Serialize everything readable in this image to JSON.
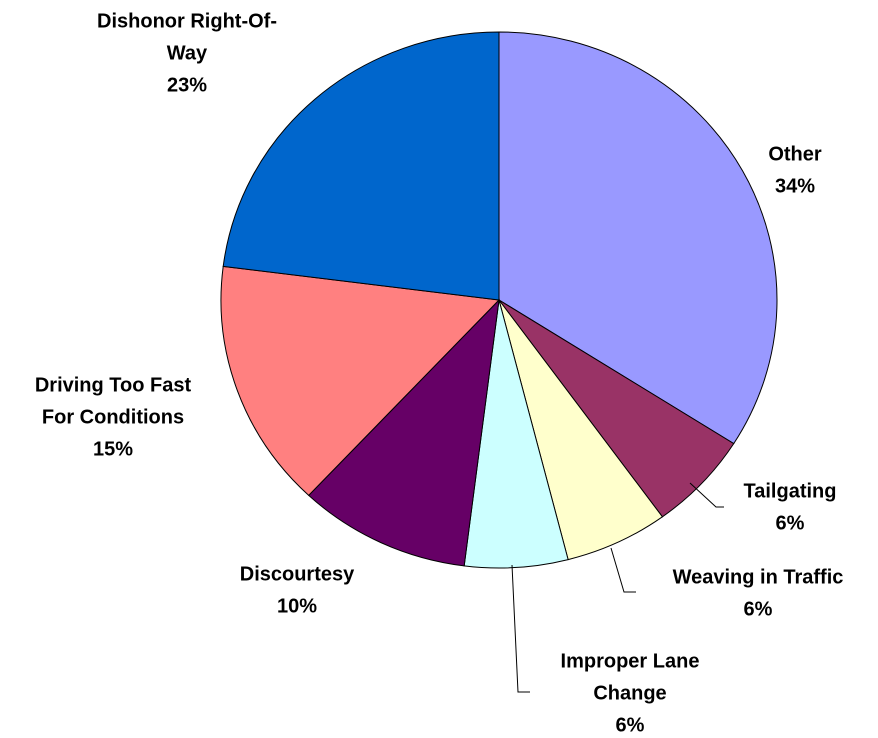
{
  "chart_data": {
    "type": "pie",
    "categories": [
      [
        "Other"
      ],
      [
        "Tailgating"
      ],
      [
        "Weaving in Traffic"
      ],
      [
        "Improper Lane",
        "Change"
      ],
      [
        "Discourtesy"
      ],
      [
        "Driving Too Fast",
        "For Conditions"
      ],
      [
        "Dishonor Right-Of-",
        "Way"
      ]
    ],
    "values": [
      34,
      6,
      6,
      6,
      10,
      15,
      23
    ],
    "value_labels": [
      "34%",
      "6%",
      "6%",
      "6%",
      "10%",
      "15%",
      "23%"
    ],
    "colors": [
      "#9999ff",
      "#993366",
      "#ffffcc",
      "#ccffff",
      "#660066",
      "#ff8080",
      "#0066cc"
    ]
  }
}
